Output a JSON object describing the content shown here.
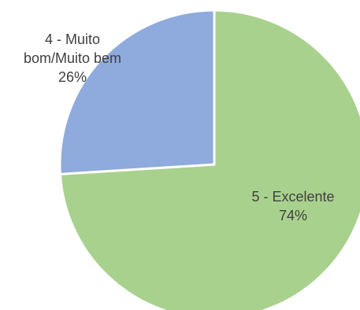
{
  "chart_data": {
    "type": "pie",
    "title": "",
    "slices": [
      {
        "label_lines": [
          "5 - Excelente",
          "74%"
        ],
        "category": "5 - Excelente",
        "percent": 74,
        "color": "#A9D18E"
      },
      {
        "label_lines": [
          "4 - Muito",
          "bom/Muito bem",
          "26%"
        ],
        "category": "4 - Muito bom/Muito bem",
        "percent": 26,
        "color": "#8FAADC"
      }
    ],
    "legend": "none",
    "data_labels": "on-slices"
  }
}
